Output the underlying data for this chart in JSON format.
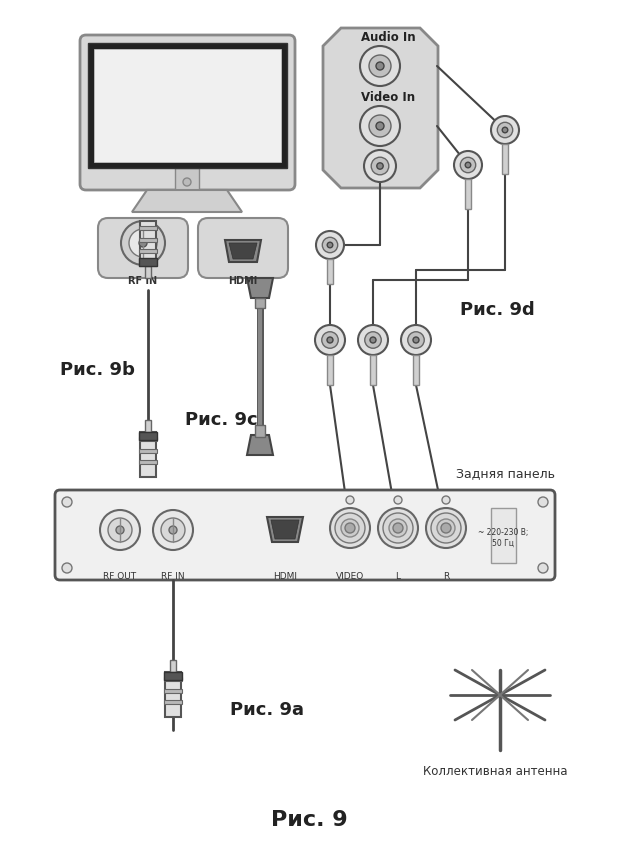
{
  "title": "Рис. 9",
  "bg_color": "#ffffff",
  "labels": {
    "rfc_9b": "Рис. 9b",
    "rfc_9c": "Рис. 9c",
    "rfc_9d": "Рис. 9d",
    "rfc_9a": "Рис. 9a",
    "audio_in": "Audio In",
    "video_in": "Video In",
    "rf_in_tv": "RF IN",
    "hdmi_tv": "HDMI",
    "rf_out_box": "RF OUT",
    "rf_in_box": "RF IN",
    "hdmi_box": "HDMI",
    "video_box": "VIDEO",
    "l_box": "L",
    "r_box": "R",
    "back_panel": "Задняя панель",
    "antenna": "Коллективная антенна",
    "power": "~ 220-230 В;\n50 Гц"
  },
  "figsize": [
    6.18,
    8.52
  ],
  "dpi": 100
}
